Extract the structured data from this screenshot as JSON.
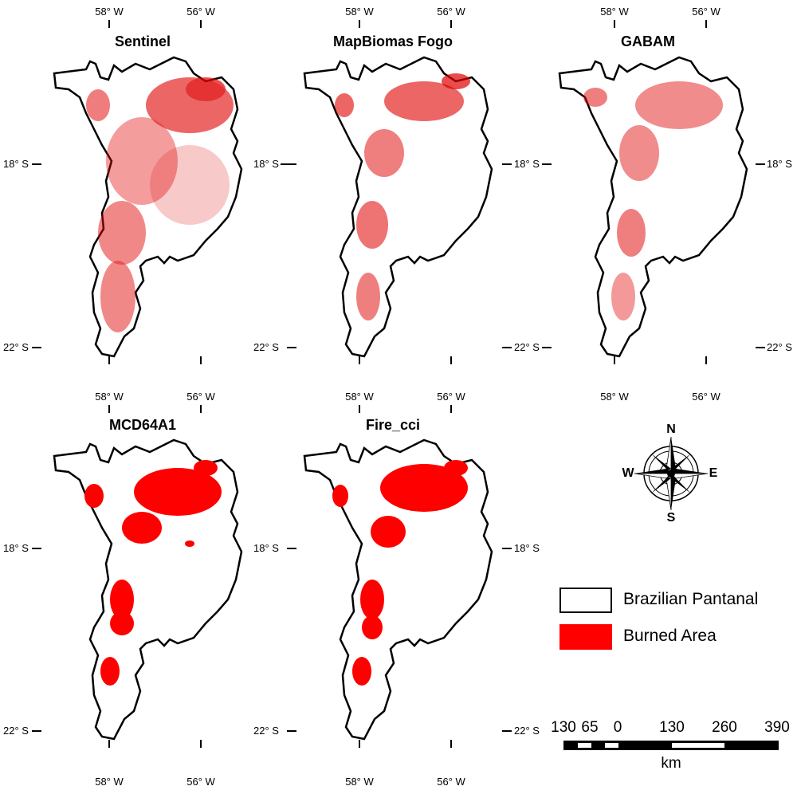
{
  "ticks": {
    "lon_a": "58° W",
    "lon_b": "56° W",
    "lat_a": "18° S",
    "lat_b": "22° S"
  },
  "panels": [
    {
      "title": "Sentinel",
      "coverage": "high",
      "fill_color": "#e00000"
    },
    {
      "title": "MapBiomas Fogo",
      "coverage": "medium",
      "fill_color": "#e00000"
    },
    {
      "title": "GABAM",
      "coverage": "medium",
      "fill_color": "#e00000"
    },
    {
      "title": "MCD64A1",
      "coverage": "high",
      "fill_color": "#ff0000"
    },
    {
      "title": "Fire_cci",
      "coverage": "high",
      "fill_color": "#ff0000"
    }
  ],
  "legend": {
    "items": [
      {
        "label": "Brazilian Pantanal",
        "color": "#ffffff"
      },
      {
        "label": "Burned Area",
        "color": "#ff0000"
      }
    ]
  },
  "scalebar": {
    "labels": [
      "130",
      "65",
      "0",
      "130",
      "260",
      "390"
    ],
    "unit": "km"
  },
  "compass": {
    "n": "N",
    "s": "S",
    "e": "E",
    "w": "W"
  }
}
